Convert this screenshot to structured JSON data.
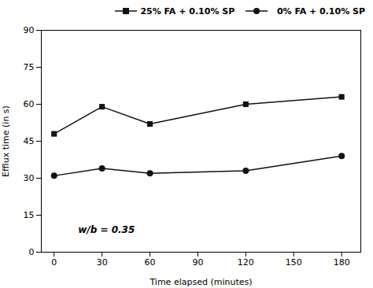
{
  "chart_data": {
    "type": "line",
    "x": [
      0,
      30,
      60,
      120,
      180
    ],
    "series": [
      {
        "name": "25% FA + 0.10% SP",
        "color": "#111111",
        "marker": "square",
        "values": [
          48,
          59,
          52,
          60,
          63
        ]
      },
      {
        "name": "  0% FA + 0.10% SP",
        "color": "#111111",
        "marker": "circle",
        "values": [
          31,
          34,
          32,
          33,
          39
        ]
      }
    ],
    "xlabel": "Time elapsed (minutes)",
    "ylabel": "Efflux time (in s)",
    "xlim": [
      -8,
      192
    ],
    "ylim": [
      0,
      90
    ],
    "xticks": [
      0,
      30,
      60,
      90,
      120,
      150,
      180
    ],
    "yticks": [
      0,
      15,
      30,
      45,
      60,
      75,
      90
    ],
    "annotations": [
      {
        "text": "w/b = 0.35",
        "x": 15,
        "y": 9
      }
    ],
    "legend": "upper right",
    "grid": false
  }
}
